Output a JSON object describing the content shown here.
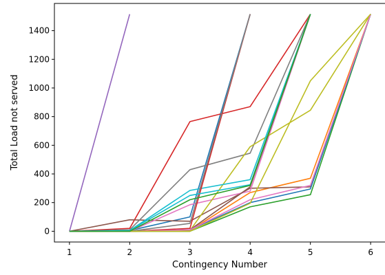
{
  "chart_data": {
    "type": "line",
    "xlabel": "Contingency Number",
    "ylabel": "Total Load not served",
    "x_ticks": [
      1,
      2,
      3,
      4,
      5,
      6
    ],
    "y_ticks": [
      0,
      200,
      400,
      600,
      800,
      1000,
      1200,
      1400
    ],
    "xlim": [
      0.75,
      6.25
    ],
    "ylim": [
      -75,
      1590
    ],
    "grid": false,
    "series": [
      {
        "color": "#1f77b4",
        "x": [
          1,
          2,
          3,
          4
        ],
        "y": [
          0,
          5,
          100,
          1515
        ]
      },
      {
        "color": "#ff7f0e",
        "x": [
          1,
          2,
          3,
          4,
          5,
          6
        ],
        "y": [
          0,
          0,
          5,
          270,
          370,
          1515
        ]
      },
      {
        "color": "#2ca02c",
        "x": [
          1,
          2,
          3,
          4,
          5,
          6
        ],
        "y": [
          0,
          0,
          0,
          170,
          255,
          1515
        ]
      },
      {
        "color": "#d62728",
        "x": [
          1,
          2,
          3,
          4,
          5
        ],
        "y": [
          0,
          20,
          765,
          870,
          1515
        ]
      },
      {
        "color": "#9467bd",
        "x": [
          1,
          2
        ],
        "y": [
          0,
          1515
        ]
      },
      {
        "color": "#8c564b",
        "x": [
          1,
          2,
          3,
          4,
          5,
          6
        ],
        "y": [
          0,
          80,
          70,
          300,
          310,
          1515
        ]
      },
      {
        "color": "#e377c2",
        "x": [
          1,
          2,
          3,
          4,
          5
        ],
        "y": [
          0,
          0,
          185,
          280,
          1515
        ]
      },
      {
        "color": "#7f7f7f",
        "x": [
          1,
          2,
          3,
          4,
          5
        ],
        "y": [
          0,
          10,
          430,
          545,
          1515
        ]
      },
      {
        "color": "#bcbd22",
        "x": [
          1,
          2,
          3,
          4,
          5,
          6
        ],
        "y": [
          0,
          0,
          5,
          590,
          845,
          1515
        ]
      },
      {
        "color": "#17becf",
        "x": [
          1,
          2,
          3,
          4,
          5
        ],
        "y": [
          0,
          5,
          285,
          360,
          1515
        ]
      },
      {
        "color": "#1f77b4",
        "x": [
          1,
          2,
          3,
          4,
          5,
          6
        ],
        "y": [
          0,
          0,
          10,
          200,
          295,
          1515
        ]
      },
      {
        "color": "#d62728",
        "x": [
          1,
          2,
          3,
          4
        ],
        "y": [
          0,
          0,
          20,
          1515
        ]
      },
      {
        "color": "#8c564b",
        "x": [
          1,
          2,
          3,
          4,
          5
        ],
        "y": [
          0,
          0,
          10,
          310,
          1515
        ]
      },
      {
        "color": "#e377c2",
        "x": [
          1,
          2,
          3,
          4,
          5,
          6
        ],
        "y": [
          0,
          0,
          10,
          220,
          320,
          1515
        ]
      },
      {
        "color": "#7f7f7f",
        "x": [
          1,
          2,
          3,
          4
        ],
        "y": [
          0,
          0,
          55,
          1515
        ]
      },
      {
        "color": "#bcbd22",
        "x": [
          1,
          2,
          3,
          4,
          5,
          6
        ],
        "y": [
          0,
          0,
          0,
          195,
          1050,
          1515
        ]
      },
      {
        "color": "#17becf",
        "x": [
          1,
          2,
          3,
          4,
          5
        ],
        "y": [
          0,
          5,
          250,
          325,
          1515
        ]
      },
      {
        "color": "#2ca02c",
        "x": [
          1,
          2,
          3,
          4,
          5
        ],
        "y": [
          0,
          0,
          220,
          320,
          1515
        ]
      }
    ]
  }
}
